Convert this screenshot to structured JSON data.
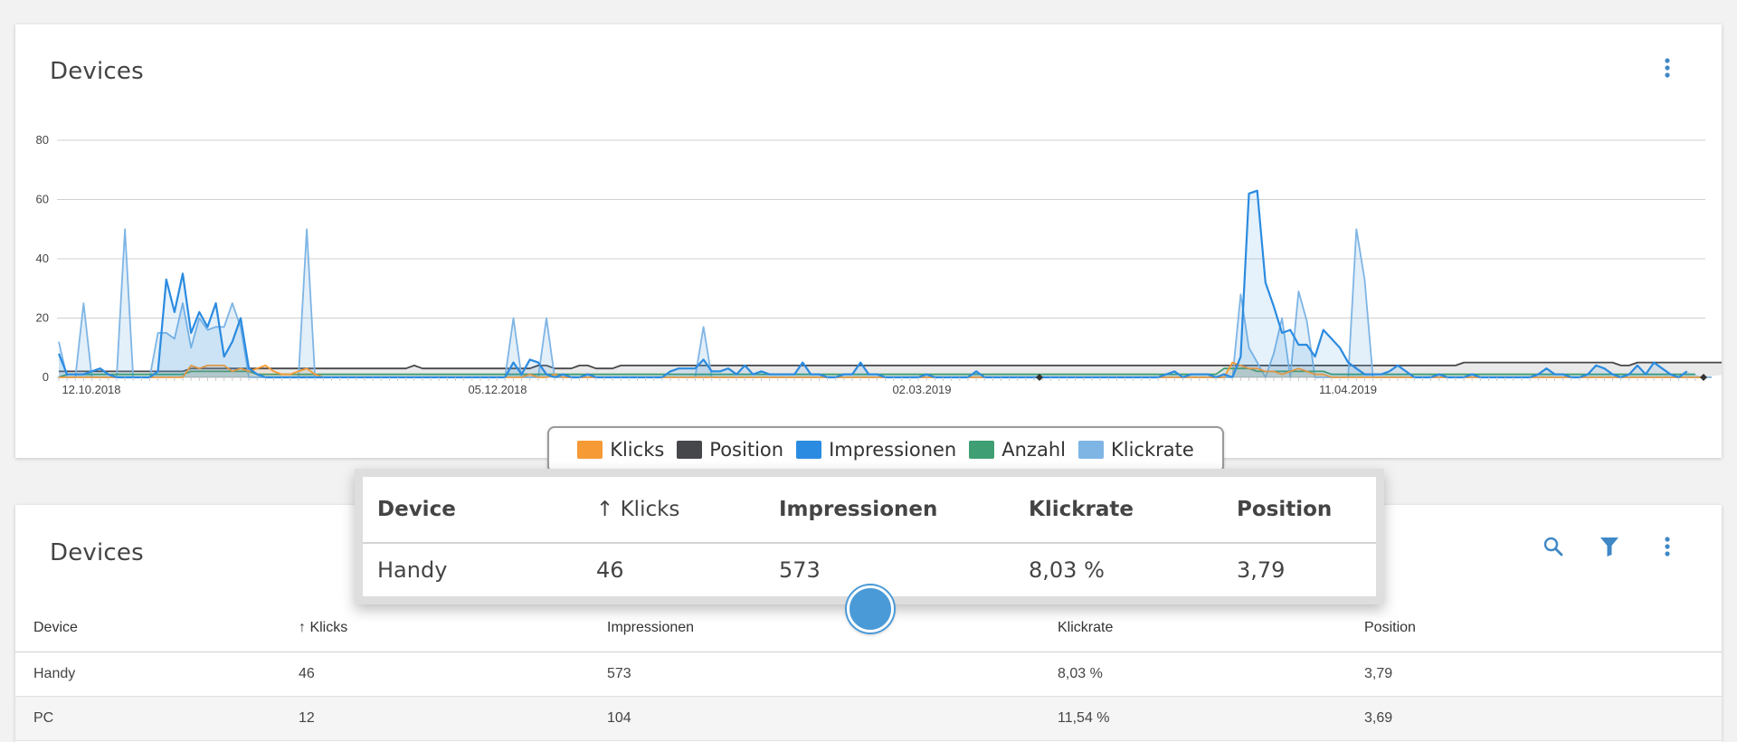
{
  "chart_card": {
    "title": "Devices"
  },
  "chart_data": {
    "type": "area",
    "ylim": [
      0,
      80
    ],
    "yticks": [
      0,
      20,
      40,
      60,
      80
    ],
    "grid": true,
    "x_tick_labels": [
      "12.10.2018",
      "05.12.2018",
      "02.03.2019",
      "11.04.2019"
    ],
    "legend_position": "bottom-center",
    "series": [
      {
        "name": "Klicks",
        "color": "#f59a35",
        "values": [
          0,
          0,
          0,
          0,
          0,
          0,
          0,
          0,
          0,
          0,
          0,
          0,
          0,
          0,
          0,
          0,
          4,
          3,
          4,
          4,
          4,
          2,
          3,
          2,
          3,
          4,
          2,
          1,
          1,
          2,
          3,
          1,
          0,
          0,
          0,
          0,
          0,
          0,
          0,
          0,
          0,
          0,
          0,
          0,
          0,
          0,
          0,
          0,
          0,
          0,
          0,
          0,
          0,
          0,
          0,
          0,
          0,
          1,
          0,
          0,
          1,
          0,
          0,
          0,
          0,
          0,
          0,
          0,
          0,
          0,
          0,
          0,
          0,
          0,
          0,
          0,
          0,
          0,
          0,
          0,
          0,
          0,
          0,
          0,
          0,
          0,
          0,
          0,
          0,
          0,
          0,
          0,
          0,
          0,
          0,
          0,
          0,
          0,
          0,
          0,
          0,
          0,
          0,
          0,
          0,
          0,
          0,
          0,
          0,
          0,
          0,
          0,
          0,
          0,
          0,
          0,
          0,
          0,
          0,
          0,
          0,
          0,
          0,
          0,
          0,
          0,
          0,
          0,
          0,
          0,
          0,
          0,
          0,
          0,
          0,
          0,
          0,
          0,
          0,
          0,
          0,
          0,
          5,
          4,
          3,
          3,
          2,
          2,
          1,
          2,
          3,
          2,
          1,
          1,
          0,
          0,
          0,
          0,
          0,
          0,
          0,
          0,
          0,
          0,
          0,
          0,
          0,
          0,
          0,
          0,
          0,
          0,
          0,
          0,
          0,
          0,
          0,
          0,
          0,
          0,
          0,
          0,
          0,
          0,
          0,
          0,
          0,
          0,
          0,
          0,
          0,
          0,
          0,
          0,
          0,
          0,
          0,
          0,
          0,
          0
        ]
      },
      {
        "name": "Position",
        "color": "#46474b",
        "values": [
          2,
          2,
          2,
          2,
          2,
          2,
          2,
          2,
          2,
          2,
          2,
          2,
          2,
          2,
          2,
          2,
          3,
          3,
          3,
          3,
          3,
          3,
          3,
          3,
          3,
          3,
          3,
          3,
          3,
          3,
          3,
          3,
          3,
          3,
          3,
          3,
          3,
          3,
          3,
          3,
          3,
          3,
          3,
          4,
          3,
          3,
          3,
          3,
          3,
          3,
          3,
          3,
          3,
          3,
          3,
          3,
          3,
          3,
          4,
          4,
          3,
          3,
          3,
          4,
          4,
          3,
          3,
          3,
          4,
          4,
          4,
          4,
          4,
          4,
          4,
          4,
          4,
          4,
          4,
          4,
          4,
          4,
          4,
          4,
          4,
          4,
          4,
          4,
          4,
          4,
          4,
          4,
          4,
          4,
          4,
          4,
          4,
          4,
          4,
          4,
          4,
          4,
          4,
          4,
          4,
          4,
          4,
          4,
          4,
          4,
          4,
          4,
          4,
          4,
          4,
          4,
          4,
          4,
          4,
          4,
          4,
          4,
          4,
          4,
          4,
          4,
          4,
          4,
          4,
          4,
          4,
          4,
          4,
          4,
          4,
          4,
          4,
          4,
          4,
          4,
          4,
          4,
          4,
          4,
          4,
          4,
          4,
          4,
          4,
          4,
          4,
          4,
          4,
          4,
          4,
          4,
          4,
          4,
          4,
          4,
          4,
          4,
          4,
          4,
          4,
          4,
          4,
          4,
          4,
          4,
          5,
          5,
          5,
          5,
          5,
          5,
          5,
          5,
          5,
          5,
          5,
          5,
          5,
          5,
          5,
          5,
          5,
          5,
          5,
          4,
          4,
          5,
          5,
          5,
          5,
          5,
          5,
          5,
          5,
          5,
          5,
          5,
          5,
          5,
          5,
          5,
          5,
          5,
          5,
          5,
          5,
          5,
          5
        ]
      },
      {
        "name": "Impressionen",
        "color": "#2b8be0",
        "values": [
          8,
          1,
          1,
          1,
          2,
          3,
          1,
          0,
          0,
          0,
          0,
          0,
          2,
          33,
          22,
          35,
          15,
          22,
          17,
          25,
          7,
          12,
          20,
          3,
          1,
          0,
          0,
          0,
          0,
          0,
          0,
          0,
          0,
          0,
          0,
          0,
          0,
          0,
          0,
          0,
          0,
          0,
          0,
          0,
          0,
          0,
          0,
          0,
          0,
          0,
          0,
          0,
          0,
          0,
          0,
          5,
          1,
          6,
          5,
          1,
          0,
          1,
          0,
          0,
          1,
          0,
          0,
          0,
          0,
          0,
          0,
          0,
          0,
          0,
          2,
          3,
          3,
          3,
          6,
          2,
          2,
          3,
          1,
          4,
          1,
          2,
          1,
          1,
          1,
          1,
          5,
          1,
          1,
          0,
          0,
          1,
          1,
          5,
          1,
          1,
          0,
          0,
          0,
          0,
          0,
          1,
          0,
          0,
          0,
          0,
          0,
          2,
          0,
          0,
          0,
          0,
          0,
          0,
          0,
          0,
          0,
          0,
          0,
          0,
          0,
          0,
          0,
          0,
          0,
          0,
          0,
          0,
          0,
          0,
          1,
          2,
          0,
          1,
          1,
          1,
          0,
          1,
          0,
          7,
          62,
          63,
          32,
          24,
          15,
          16,
          11,
          11,
          7,
          16,
          13,
          10,
          5,
          3,
          1,
          1,
          1,
          2,
          4,
          2,
          0,
          0,
          0,
          1,
          0,
          0,
          0,
          1,
          0,
          0,
          0,
          0,
          0,
          0,
          0,
          1,
          3,
          1,
          1,
          0,
          0,
          1,
          4,
          3,
          1,
          0,
          1,
          4,
          1,
          5,
          3,
          1,
          0,
          2
        ]
      },
      {
        "name": "Anzahl",
        "color": "#3f9e73",
        "values": [
          0,
          1,
          1,
          1,
          1,
          1,
          1,
          1,
          1,
          1,
          1,
          1,
          1,
          1,
          1,
          1,
          2,
          2,
          2,
          2,
          2,
          2,
          2,
          2,
          1,
          1,
          1,
          1,
          1,
          1,
          1,
          1,
          1,
          1,
          1,
          1,
          1,
          1,
          1,
          1,
          1,
          1,
          1,
          1,
          1,
          1,
          1,
          1,
          1,
          1,
          1,
          1,
          1,
          1,
          1,
          1,
          1,
          1,
          1,
          1,
          1,
          1,
          1,
          1,
          1,
          1,
          1,
          1,
          1,
          1,
          1,
          1,
          1,
          1,
          1,
          1,
          1,
          1,
          1,
          1,
          1,
          1,
          1,
          1,
          1,
          1,
          1,
          1,
          1,
          1,
          1,
          1,
          1,
          1,
          1,
          1,
          1,
          1,
          1,
          1,
          1,
          1,
          1,
          1,
          1,
          1,
          1,
          1,
          1,
          1,
          1,
          1,
          1,
          1,
          1,
          1,
          1,
          1,
          1,
          1,
          1,
          1,
          1,
          1,
          1,
          1,
          1,
          1,
          1,
          1,
          1,
          1,
          1,
          1,
          1,
          1,
          1,
          1,
          1,
          1,
          1,
          3,
          3,
          3,
          3,
          2,
          2,
          2,
          2,
          2,
          2,
          2,
          2,
          2,
          1,
          1,
          1,
          1,
          1,
          1,
          1,
          1,
          1,
          1,
          1,
          1,
          1,
          1,
          1,
          1,
          1,
          1,
          1,
          1,
          1,
          1,
          1,
          1,
          1,
          1,
          1,
          1,
          1,
          1,
          1,
          1,
          1,
          1,
          1,
          1,
          1,
          1,
          1,
          1,
          1,
          1,
          1,
          1,
          1
        ]
      },
      {
        "name": "Klickrate",
        "color": "#7eb5e5",
        "values": [
          12,
          0,
          0,
          25,
          0,
          0,
          0,
          0,
          50,
          0,
          0,
          0,
          15,
          15,
          13,
          25,
          10,
          20,
          16,
          17,
          17,
          25,
          17,
          0,
          0,
          0,
          0,
          0,
          0,
          0,
          50,
          0,
          0,
          0,
          0,
          0,
          0,
          0,
          0,
          0,
          0,
          0,
          0,
          0,
          0,
          0,
          0,
          0,
          0,
          0,
          0,
          0,
          0,
          0,
          0,
          20,
          0,
          0,
          0,
          20,
          0,
          0,
          0,
          0,
          0,
          0,
          0,
          0,
          0,
          0,
          0,
          0,
          0,
          0,
          0,
          0,
          0,
          0,
          17,
          0,
          0,
          0,
          0,
          0,
          0,
          0,
          0,
          0,
          0,
          0,
          0,
          0,
          0,
          0,
          0,
          0,
          0,
          0,
          0,
          0,
          0,
          0,
          0,
          0,
          0,
          0,
          0,
          0,
          0,
          0,
          0,
          0,
          0,
          0,
          0,
          0,
          0,
          0,
          0,
          0,
          0,
          0,
          0,
          0,
          0,
          0,
          0,
          0,
          0,
          0,
          0,
          0,
          0,
          0,
          0,
          0,
          0,
          0,
          0,
          0,
          0,
          0,
          0,
          28,
          10,
          5,
          0,
          8,
          20,
          0,
          29,
          19,
          0,
          0,
          0,
          0,
          0,
          50,
          33,
          0,
          0,
          0,
          0,
          0,
          0,
          0,
          0,
          0,
          0,
          0,
          0,
          0,
          0,
          0,
          0,
          0,
          0,
          0,
          0,
          0,
          0,
          0,
          0,
          0,
          0,
          0,
          0,
          0,
          0,
          0,
          0,
          0,
          0,
          0,
          0,
          0,
          0,
          0,
          0,
          0,
          0
        ]
      }
    ]
  },
  "legend": [
    "Klicks",
    "Position",
    "Impressionen",
    "Anzahl",
    "Klickrate"
  ],
  "table_card": {
    "title": "Devices",
    "columns": [
      "Device",
      "Klicks",
      "Impressionen",
      "Klickrate",
      "Position"
    ],
    "sort_arrow": "↑",
    "rows": [
      {
        "device": "Handy",
        "klicks": "46",
        "impressionen": "573",
        "klickrate": "8,03 %",
        "position": "3,79"
      },
      {
        "device": "PC",
        "klicks": "12",
        "impressionen": "104",
        "klickrate": "11,54 %",
        "position": "3,69"
      }
    ]
  },
  "icons": {
    "menu": "more-vert-icon",
    "search": "search-icon",
    "filter": "filter-icon",
    "sort": "arrow-up-icon"
  },
  "colors": {
    "accent": "#3f88c5"
  }
}
